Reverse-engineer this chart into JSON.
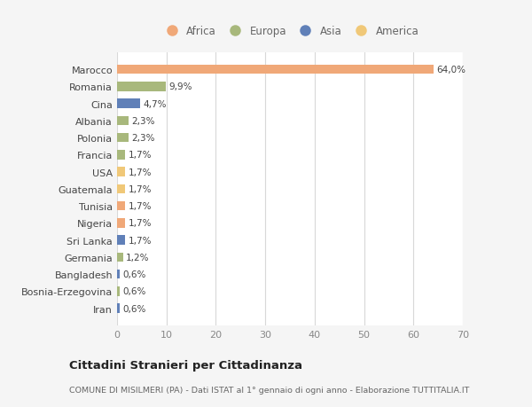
{
  "categories": [
    "Marocco",
    "Romania",
    "Cina",
    "Albania",
    "Polonia",
    "Francia",
    "USA",
    "Guatemala",
    "Tunisia",
    "Nigeria",
    "Sri Lanka",
    "Germania",
    "Bangladesh",
    "Bosnia-Erzegovina",
    "Iran"
  ],
  "values": [
    64.0,
    9.9,
    4.7,
    2.3,
    2.3,
    1.7,
    1.7,
    1.7,
    1.7,
    1.7,
    1.7,
    1.2,
    0.6,
    0.6,
    0.6
  ],
  "labels": [
    "64,0%",
    "9,9%",
    "4,7%",
    "2,3%",
    "2,3%",
    "1,7%",
    "1,7%",
    "1,7%",
    "1,7%",
    "1,7%",
    "1,7%",
    "1,2%",
    "0,6%",
    "0,6%",
    "0,6%"
  ],
  "colors": [
    "#f0a878",
    "#a8b87c",
    "#6080b8",
    "#a8b87c",
    "#a8b87c",
    "#a8b87c",
    "#f0c878",
    "#f0c878",
    "#f0a878",
    "#f0a878",
    "#6080b8",
    "#a8b87c",
    "#6080b8",
    "#a8b87c",
    "#6080b8"
  ],
  "legend_labels": [
    "Africa",
    "Europa",
    "Asia",
    "America"
  ],
  "legend_colors": [
    "#f0a878",
    "#a8b87c",
    "#6080b8",
    "#f0c878"
  ],
  "xlim": [
    0,
    70
  ],
  "xticks": [
    0,
    10,
    20,
    30,
    40,
    50,
    60,
    70
  ],
  "title": "Cittadini Stranieri per Cittadinanza",
  "subtitle": "COMUNE DI MISILMERI (PA) - Dati ISTAT al 1° gennaio di ogni anno - Elaborazione TUTTITALIA.IT",
  "background_color": "#f5f5f5",
  "plot_bg_color": "#ffffff",
  "grid_color": "#d8d8d8"
}
